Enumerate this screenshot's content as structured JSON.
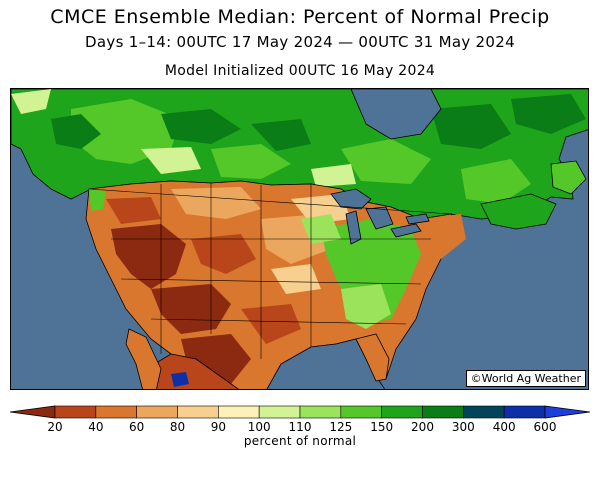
{
  "header": {
    "title": "CMCE Ensemble Median: Percent of Normal Precip",
    "period": "Days 1–14: 00UTC 17 May 2024 — 00UTC 31 May 2024",
    "initialized": "Model Initialized 00UTC 16 May 2024"
  },
  "map": {
    "credit": "©World Ag Weather",
    "ocean_color": "#4f7396",
    "land_outline_color": "#000000"
  },
  "legend": {
    "label": "percent of normal",
    "ticks": [
      "20",
      "40",
      "60",
      "80",
      "90",
      "100",
      "110",
      "125",
      "150",
      "200",
      "300",
      "400",
      "600"
    ],
    "colors": [
      "#8b2a11",
      "#b8461a",
      "#d9772f",
      "#eca75f",
      "#f7cf8e",
      "#fdf0b9",
      "#d2f394",
      "#9ce35c",
      "#55c829",
      "#1ea51b",
      "#0a7d16",
      "#04445b",
      "#0d2fa8",
      "#1f3fdc"
    ]
  }
}
